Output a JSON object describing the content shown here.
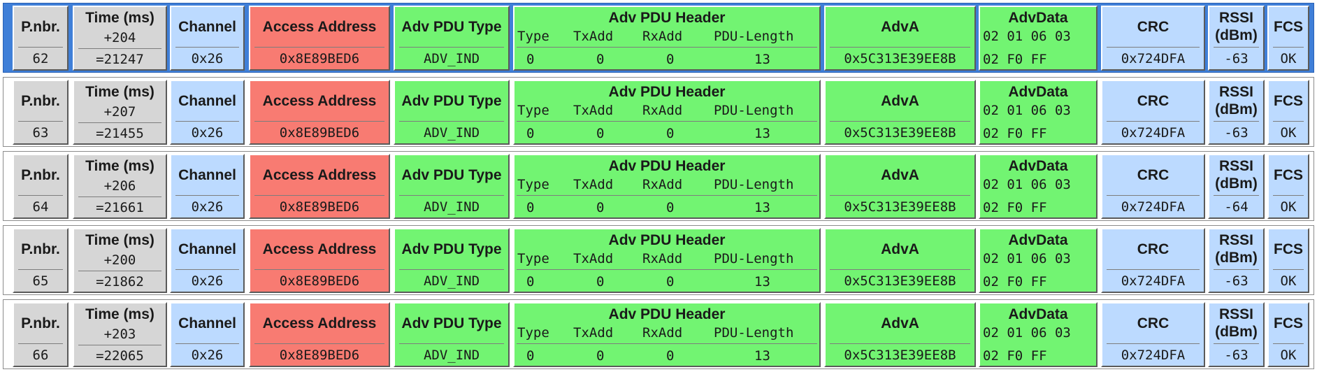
{
  "headers": {
    "pnbr": "P.nbr.",
    "time": "Time (ms)",
    "channel": "Channel",
    "access_address": "Access Address",
    "adv_pdu_type": "Adv PDU Type",
    "adv_pdu_header": "Adv PDU Header",
    "hdr_type": "Type",
    "hdr_txadd": "TxAdd",
    "hdr_rxadd": "RxAdd",
    "hdr_pdu_length": "PDU-Length",
    "adva": "AdvA",
    "advdata": "AdvData",
    "crc": "CRC",
    "rssi_line1": "RSSI",
    "rssi_line2": "(dBm)",
    "fcs": "FCS"
  },
  "colors": {
    "gray": "#d6d6d6",
    "blue": "#bcdaff",
    "red": "#f87b72",
    "green": "#72f472",
    "selected_row": "#3f7fd8"
  },
  "packets": [
    {
      "pnbr": "62",
      "time_delta": "+204",
      "time_abs": "=21247",
      "channel": "0x26",
      "access_address": "0x8E89BED6",
      "pdu_type": "ADV_IND",
      "hdr_type": "0",
      "hdr_txadd": "0",
      "hdr_rxadd": "0",
      "hdr_len": "13",
      "adva": "0x5C313E39EE8B",
      "advdata_1": "02 01 06 03",
      "advdata_2": "02 F0 FF",
      "crc": "0x724DFA",
      "rssi": "-63",
      "fcs": "OK",
      "selected": true
    },
    {
      "pnbr": "63",
      "time_delta": "+207",
      "time_abs": "=21455",
      "channel": "0x26",
      "access_address": "0x8E89BED6",
      "pdu_type": "ADV_IND",
      "hdr_type": "0",
      "hdr_txadd": "0",
      "hdr_rxadd": "0",
      "hdr_len": "13",
      "adva": "0x5C313E39EE8B",
      "advdata_1": "02 01 06 03",
      "advdata_2": "02 F0 FF",
      "crc": "0x724DFA",
      "rssi": "-63",
      "fcs": "OK",
      "selected": false
    },
    {
      "pnbr": "64",
      "time_delta": "+206",
      "time_abs": "=21661",
      "channel": "0x26",
      "access_address": "0x8E89BED6",
      "pdu_type": "ADV_IND",
      "hdr_type": "0",
      "hdr_txadd": "0",
      "hdr_rxadd": "0",
      "hdr_len": "13",
      "adva": "0x5C313E39EE8B",
      "advdata_1": "02 01 06 03",
      "advdata_2": "02 F0 FF",
      "crc": "0x724DFA",
      "rssi": "-64",
      "fcs": "OK",
      "selected": false
    },
    {
      "pnbr": "65",
      "time_delta": "+200",
      "time_abs": "=21862",
      "channel": "0x26",
      "access_address": "0x8E89BED6",
      "pdu_type": "ADV_IND",
      "hdr_type": "0",
      "hdr_txadd": "0",
      "hdr_rxadd": "0",
      "hdr_len": "13",
      "adva": "0x5C313E39EE8B",
      "advdata_1": "02 01 06 03",
      "advdata_2": "02 F0 FF",
      "crc": "0x724DFA",
      "rssi": "-63",
      "fcs": "OK",
      "selected": false
    },
    {
      "pnbr": "66",
      "time_delta": "+203",
      "time_abs": "=22065",
      "channel": "0x26",
      "access_address": "0x8E89BED6",
      "pdu_type": "ADV_IND",
      "hdr_type": "0",
      "hdr_txadd": "0",
      "hdr_rxadd": "0",
      "hdr_len": "13",
      "adva": "0x5C313E39EE8B",
      "advdata_1": "02 01 06 03",
      "advdata_2": "02 F0 FF",
      "crc": "0x724DFA",
      "rssi": "-63",
      "fcs": "OK",
      "selected": false
    }
  ]
}
